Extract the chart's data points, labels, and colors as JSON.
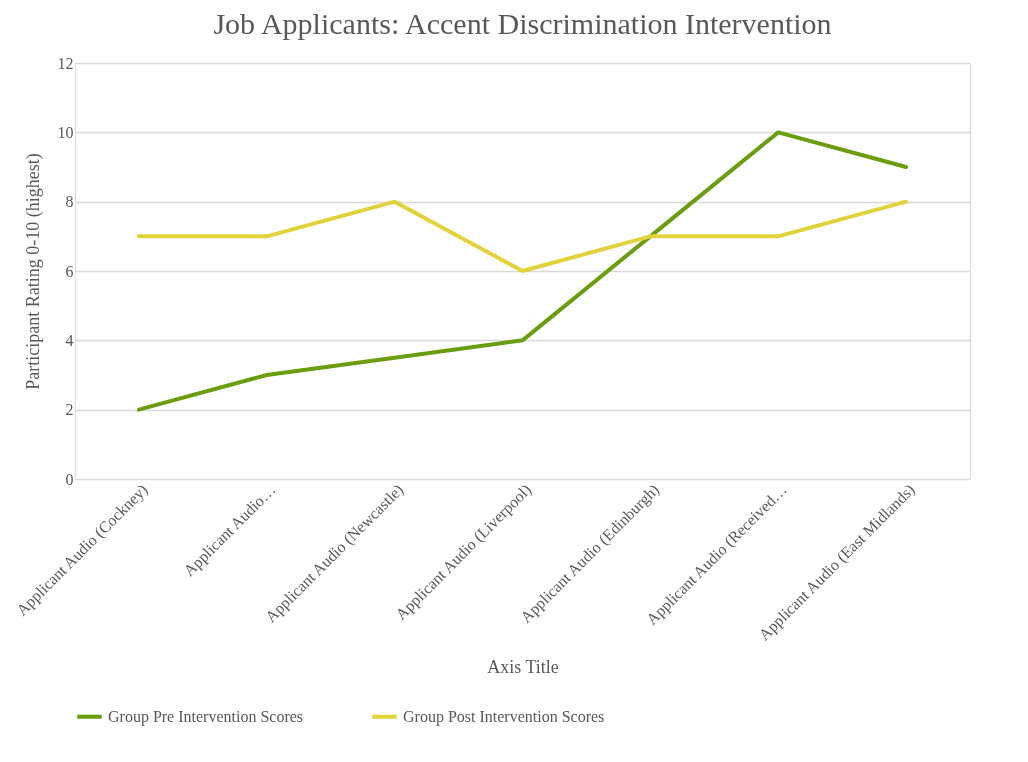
{
  "chart_data": {
    "type": "line",
    "title": "Job Applicants: Accent Discrimination Intervention",
    "xlabel": "Axis Title",
    "ylabel": "Participant Rating 0-10  (highest)",
    "categories": [
      "Applicant Audio (Cockney)",
      "Applicant Audio…",
      "Applicant Audio (Newcastle)",
      "Applicant Audio (Liverpool)",
      "Applicant Audio (Edinburgh)",
      "Applicant Audio (Received…",
      "Applicant Audio (East Midlands)"
    ],
    "series": [
      {
        "name": "Group Pre Intervention Scores",
        "color": "#6a9e0f",
        "values": [
          2,
          3,
          3.5,
          4,
          7,
          10,
          9
        ]
      },
      {
        "name": "Group Post Intervention Scores",
        "color": "#e3d23b",
        "values": [
          7,
          7,
          8,
          6,
          7,
          7,
          8
        ]
      }
    ],
    "ylim": [
      0,
      12
    ],
    "yticks": [
      0,
      2,
      4,
      6,
      8,
      10,
      12
    ],
    "grid": "y",
    "legend": "bottom",
    "marker": "none",
    "line_style": "solid"
  }
}
